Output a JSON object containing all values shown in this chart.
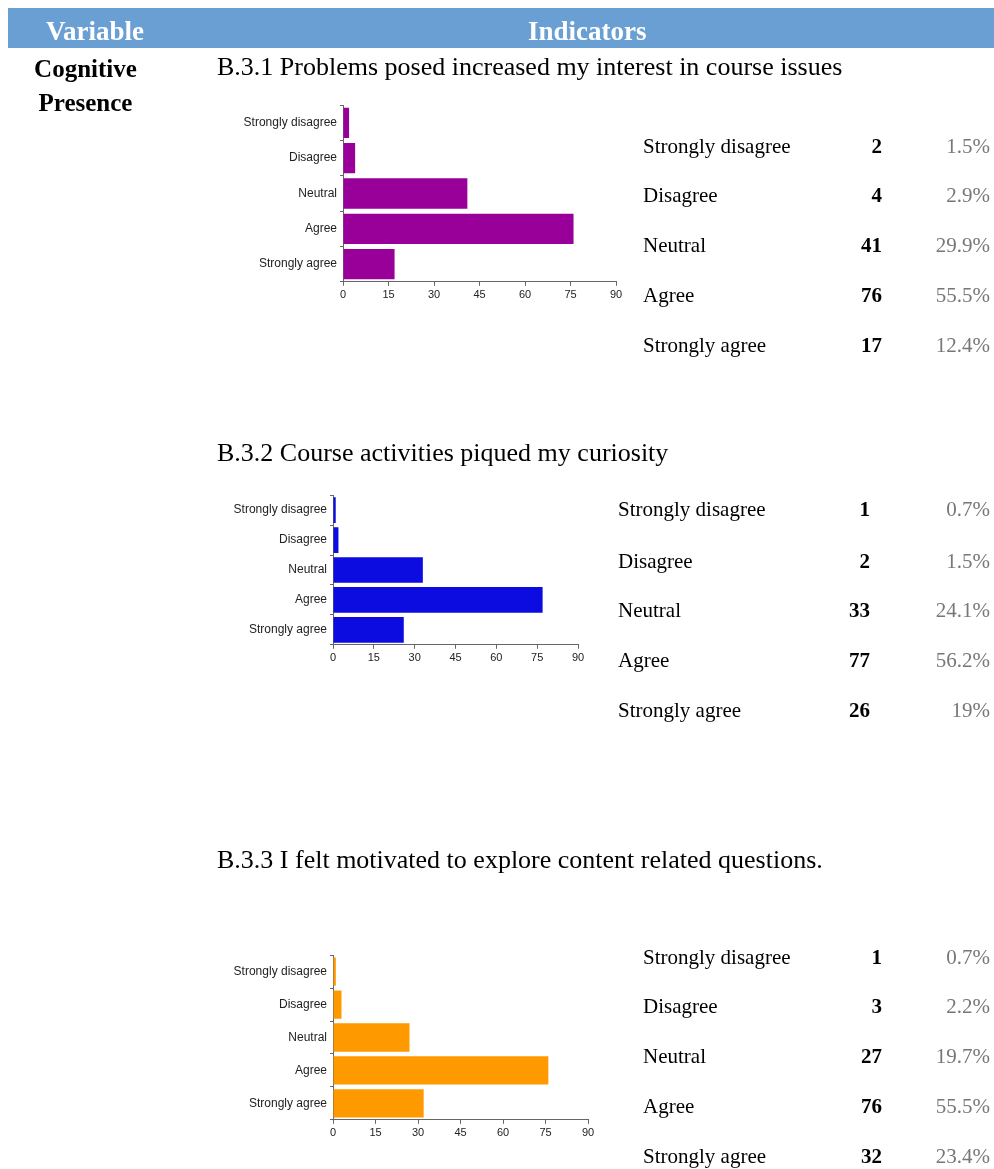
{
  "chart_data": [
    {
      "type": "bar",
      "orientation": "horizontal",
      "title": "B.3.1 Problems posed increased my interest in course issues",
      "categories": [
        "Strongly disagree",
        "Disagree",
        "Neutral",
        "Agree",
        "Strongly agree"
      ],
      "values": [
        2,
        4,
        41,
        76,
        17
      ],
      "color": "#990099",
      "xlim": [
        0,
        90
      ],
      "xticks": [
        0,
        15,
        30,
        45,
        60,
        75,
        90
      ],
      "grid": false,
      "legend": false,
      "annotations": [
        "2",
        "4",
        "41",
        "76",
        "17",
        "1.5%",
        "2.9%",
        "29.9%",
        "55.5%",
        "12.4%",
        "Variable",
        "Indicators",
        "Cognitive Presence"
      ]
    },
    {
      "type": "bar",
      "orientation": "horizontal",
      "title": "B.3.2 Course activities piqued my curiosity",
      "categories": [
        "Strongly disagree",
        "Disagree",
        "Neutral",
        "Agree",
        "Strongly agree"
      ],
      "values": [
        1,
        2,
        33,
        77,
        26
      ],
      "color": "#0c0ce0",
      "xlim": [
        0,
        90
      ],
      "xticks": [
        0,
        15,
        30,
        45,
        60,
        75,
        90
      ],
      "grid": false,
      "legend": false,
      "annotations": [
        "1",
        "2",
        "33",
        "77",
        "26",
        "0.7%",
        "1.5%",
        "24.1%",
        "56.2%",
        "19%"
      ]
    },
    {
      "type": "bar",
      "orientation": "horizontal",
      "title": "B.3.3 I felt motivated to explore content related questions.",
      "categories": [
        "Strongly disagree",
        "Disagree",
        "Neutral",
        "Agree",
        "Strongly agree"
      ],
      "values": [
        1,
        3,
        27,
        76,
        32
      ],
      "color": "#ff9900",
      "xlim": [
        0,
        90
      ],
      "xticks": [
        0,
        15,
        30,
        45,
        60,
        75,
        90
      ],
      "grid": false,
      "legend": false,
      "annotations": [
        "1",
        "3",
        "27",
        "76",
        "32",
        "0.7%",
        "2.2%",
        "19.7%",
        "55.5%",
        "23.4%"
      ]
    }
  ]
}
